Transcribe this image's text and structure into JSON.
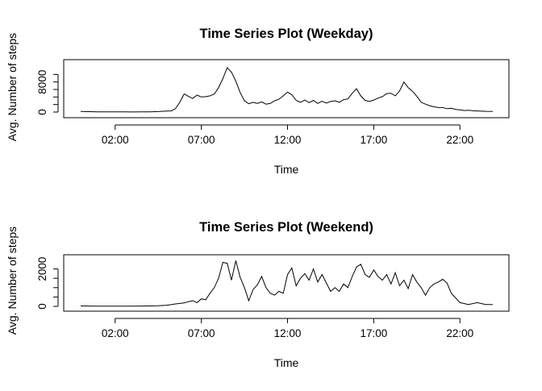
{
  "chart_data": [
    {
      "type": "line",
      "title": "Time Series Plot (Weekday)",
      "xlabel": "Time",
      "ylabel": "Avg. Number of steps",
      "x_unit": "hour",
      "xlim": [
        0,
        24
      ],
      "ylim": [
        0,
        12000
      ],
      "x_ticks": [
        2,
        7,
        12,
        17,
        22
      ],
      "x_tick_labels": [
        "02:00",
        "07:00",
        "12:00",
        "17:00",
        "22:00"
      ],
      "y_ticks": [
        0,
        2000,
        4000,
        6000,
        8000,
        10000
      ],
      "y_tick_labels": [
        "0",
        "",
        "",
        "",
        "8000",
        ""
      ],
      "series": [
        {
          "x": [
            0,
            0.5,
            1,
            1.5,
            2,
            2.5,
            3,
            3.5,
            4,
            4.5,
            5,
            5.25,
            5.5,
            5.75,
            6,
            6.25,
            6.5,
            6.75,
            7,
            7.25,
            7.5,
            7.75,
            8,
            8.25,
            8.5,
            8.75,
            9,
            9.25,
            9.5,
            9.75,
            10,
            10.25,
            10.5,
            10.75,
            11,
            11.25,
            11.5,
            11.75,
            12,
            12.25,
            12.5,
            12.75,
            13,
            13.25,
            13.5,
            13.75,
            14,
            14.25,
            14.5,
            14.75,
            15,
            15.25,
            15.5,
            15.75,
            16,
            16.25,
            16.5,
            16.75,
            17,
            17.25,
            17.5,
            17.75,
            18,
            18.25,
            18.5,
            18.75,
            19,
            19.25,
            19.5,
            19.75,
            20,
            20.25,
            20.5,
            20.75,
            21,
            21.25,
            21.5,
            21.75,
            22,
            22.25,
            22.5,
            22.75,
            23,
            23.5,
            23.9
          ],
          "y": [
            150,
            100,
            60,
            50,
            40,
            40,
            30,
            40,
            60,
            120,
            250,
            300,
            900,
            2600,
            4800,
            4200,
            3600,
            4500,
            4000,
            4100,
            4300,
            4800,
            6500,
            8900,
            11800,
            10600,
            8200,
            5200,
            3000,
            2200,
            2600,
            2300,
            2700,
            2100,
            2300,
            3000,
            3400,
            4300,
            5300,
            4600,
            3100,
            2600,
            3200,
            2500,
            3100,
            2300,
            2900,
            2400,
            2800,
            3000,
            2600,
            3300,
            3500,
            5000,
            6200,
            4300,
            3100,
            2800,
            3200,
            3700,
            4100,
            4900,
            5000,
            4300,
            5600,
            8000,
            6500,
            5500,
            4200,
            2600,
            2100,
            1700,
            1400,
            1200,
            1200,
            900,
            1000,
            700,
            600,
            400,
            500,
            350,
            300,
            200,
            150
          ]
        }
      ]
    },
    {
      "type": "line",
      "title": "Time Series Plot (Weekend)",
      "xlabel": "Time",
      "ylabel": "Avg. Number of steps",
      "x_unit": "hour",
      "xlim": [
        0,
        24
      ],
      "ylim": [
        0,
        2500
      ],
      "x_ticks": [
        2,
        7,
        12,
        17,
        22
      ],
      "x_tick_labels": [
        "02:00",
        "07:00",
        "12:00",
        "17:00",
        "22:00"
      ],
      "y_ticks": [
        0,
        500,
        1000,
        1500,
        2000
      ],
      "y_tick_labels": [
        "0",
        "",
        "",
        "",
        "2000"
      ],
      "series": [
        {
          "x": [
            0,
            1,
            2,
            3,
            4,
            4.5,
            5,
            5.5,
            6,
            6.25,
            6.5,
            6.75,
            7,
            7.25,
            7.5,
            7.75,
            8,
            8.25,
            8.5,
            8.75,
            9,
            9.25,
            9.5,
            9.75,
            10,
            10.25,
            10.5,
            10.75,
            11,
            11.25,
            11.5,
            11.75,
            12,
            12.25,
            12.5,
            12.75,
            13,
            13.25,
            13.5,
            13.75,
            14,
            14.25,
            14.5,
            14.75,
            15,
            15.25,
            15.5,
            15.75,
            16,
            16.25,
            16.5,
            16.75,
            17,
            17.25,
            17.5,
            17.75,
            18,
            18.25,
            18.5,
            18.75,
            19,
            19.25,
            19.5,
            19.75,
            20,
            20.25,
            20.5,
            20.75,
            21,
            21.25,
            21.5,
            22,
            22.5,
            23,
            23.5,
            23.9
          ],
          "y": [
            20,
            15,
            10,
            10,
            20,
            30,
            60,
            130,
            180,
            250,
            300,
            200,
            400,
            350,
            700,
            1000,
            1500,
            2350,
            2300,
            1400,
            2450,
            1550,
            1000,
            300,
            900,
            1150,
            1600,
            1000,
            700,
            600,
            800,
            700,
            1700,
            2050,
            1100,
            1500,
            1750,
            1400,
            2000,
            1300,
            1700,
            1250,
            800,
            1000,
            800,
            1200,
            1000,
            1600,
            2100,
            2250,
            1700,
            1550,
            1950,
            1600,
            1400,
            1700,
            1200,
            1800,
            1100,
            1400,
            950,
            1700,
            1300,
            1000,
            600,
            1000,
            1200,
            1300,
            1450,
            1250,
            700,
            200,
            100,
            200,
            100,
            100
          ]
        }
      ]
    }
  ]
}
